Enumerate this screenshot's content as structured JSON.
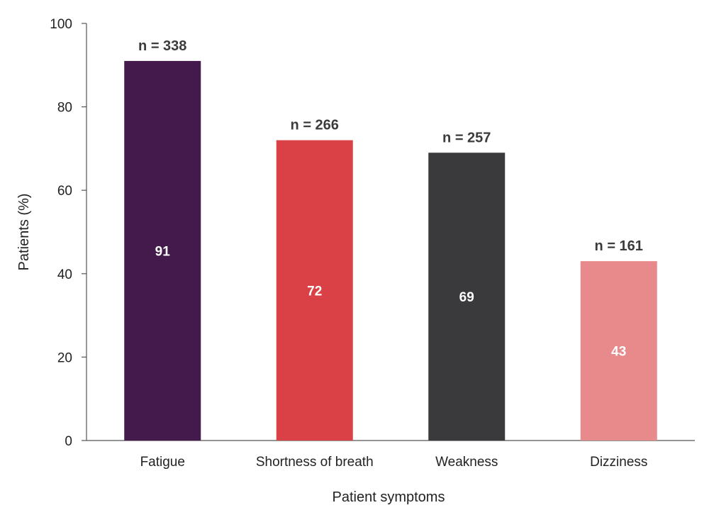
{
  "chart_data": {
    "type": "bar",
    "title": "",
    "xlabel": "Patient symptoms",
    "ylabel": "Patients (%)",
    "ylim": [
      0,
      100
    ],
    "yticks": [
      0,
      20,
      40,
      60,
      80,
      100
    ],
    "categories": [
      "Fatigue",
      "Shortness of breath",
      "Weakness",
      "Dizziness"
    ],
    "values": [
      91,
      72,
      69,
      43
    ],
    "value_labels": [
      "91",
      "72",
      "69",
      "43"
    ],
    "n_labels": [
      "n = 338",
      "n = 266",
      "n = 257",
      "n = 161"
    ],
    "colors": [
      "#431a4b",
      "#d94147",
      "#3a393b",
      "#e88a8c"
    ],
    "grid": false,
    "legend": "none"
  }
}
